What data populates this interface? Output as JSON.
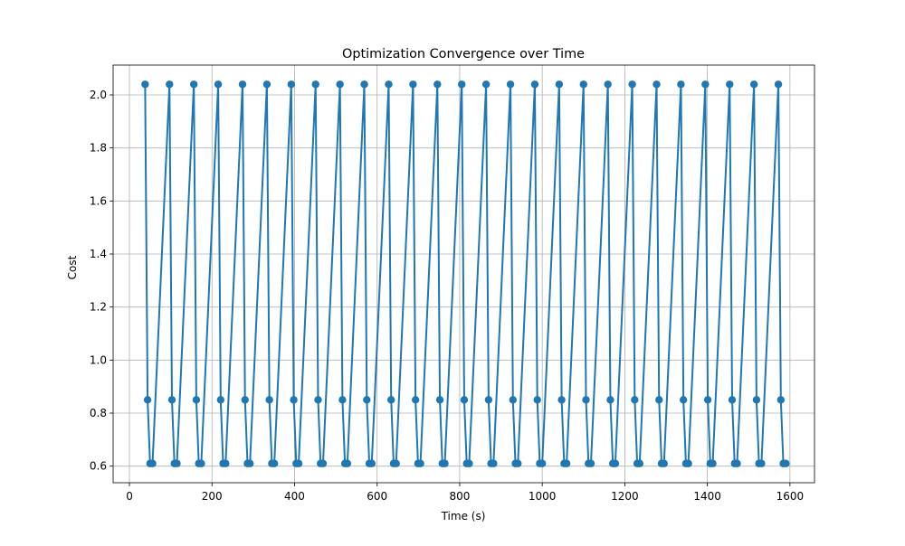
{
  "chart_data": {
    "type": "line",
    "title": "Optimization Convergence over Time",
    "xlabel": "Time (s)",
    "ylabel": "Cost",
    "xlim": [
      -39.5,
      1659.5
    ],
    "ylim": [
      0.5375,
      2.1125
    ],
    "xticks": [
      0,
      200,
      400,
      600,
      800,
      1000,
      1200,
      1400,
      1600
    ],
    "xtick_labels": [
      "0",
      "200",
      "400",
      "600",
      "800",
      "1000",
      "1200",
      "1400",
      "1600"
    ],
    "yticks": [
      0.6,
      0.8,
      1.0,
      1.2,
      1.4,
      1.6,
      1.8,
      2.0
    ],
    "ytick_labels": [
      "0.6",
      "0.8",
      "1.0",
      "1.2",
      "1.4",
      "1.6",
      "1.8",
      "2.0"
    ],
    "grid": true,
    "marker": "circle",
    "color": "#1f77b4",
    "cycles": 27,
    "series": [
      {
        "x": [
          38,
          44,
          50,
          56,
          97,
          103,
          109,
          115,
          156,
          162,
          168,
          174,
          215,
          221,
          227,
          233,
          274,
          280,
          286,
          292,
          333,
          339,
          345,
          351,
          392,
          398,
          404,
          410,
          451,
          457,
          463,
          469,
          510,
          516,
          522,
          528,
          569,
          575,
          581,
          587,
          628,
          634,
          640,
          646,
          687,
          693,
          699,
          705,
          746,
          752,
          758,
          764,
          805,
          811,
          817,
          823,
          864,
          870,
          876,
          882,
          923,
          929,
          935,
          941,
          982,
          988,
          994,
          1000,
          1041,
          1047,
          1053,
          1059,
          1100,
          1106,
          1112,
          1118,
          1159,
          1165,
          1171,
          1177,
          1218,
          1224,
          1230,
          1236,
          1277,
          1283,
          1289,
          1295,
          1336,
          1342,
          1348,
          1354,
          1395,
          1401,
          1407,
          1413,
          1454,
          1460,
          1466,
          1472,
          1513,
          1519,
          1525,
          1531,
          1572,
          1578,
          1584,
          1590
        ],
        "y": [
          2.04,
          0.85,
          0.61,
          0.61,
          2.04,
          0.85,
          0.61,
          0.61,
          2.04,
          0.85,
          0.61,
          0.61,
          2.04,
          0.85,
          0.61,
          0.61,
          2.04,
          0.85,
          0.61,
          0.61,
          2.04,
          0.85,
          0.61,
          0.61,
          2.04,
          0.85,
          0.61,
          0.61,
          2.04,
          0.85,
          0.61,
          0.61,
          2.04,
          0.85,
          0.61,
          0.61,
          2.04,
          0.85,
          0.61,
          0.61,
          2.04,
          0.85,
          0.61,
          0.61,
          2.04,
          0.85,
          0.61,
          0.61,
          2.04,
          0.85,
          0.61,
          0.61,
          2.04,
          0.85,
          0.61,
          0.61,
          2.04,
          0.85,
          0.61,
          0.61,
          2.04,
          0.85,
          0.61,
          0.61,
          2.04,
          0.85,
          0.61,
          0.61,
          2.04,
          0.85,
          0.61,
          0.61,
          2.04,
          0.85,
          0.61,
          0.61,
          2.04,
          0.85,
          0.61,
          0.61,
          2.04,
          0.85,
          0.61,
          0.61,
          2.04,
          0.85,
          0.61,
          0.61,
          2.04,
          0.85,
          0.61,
          0.61,
          2.04,
          0.85,
          0.61,
          0.61,
          2.04,
          0.85,
          0.61,
          0.61,
          2.04,
          0.85,
          0.61,
          0.61,
          2.04,
          0.85,
          0.61,
          0.61
        ]
      }
    ]
  }
}
